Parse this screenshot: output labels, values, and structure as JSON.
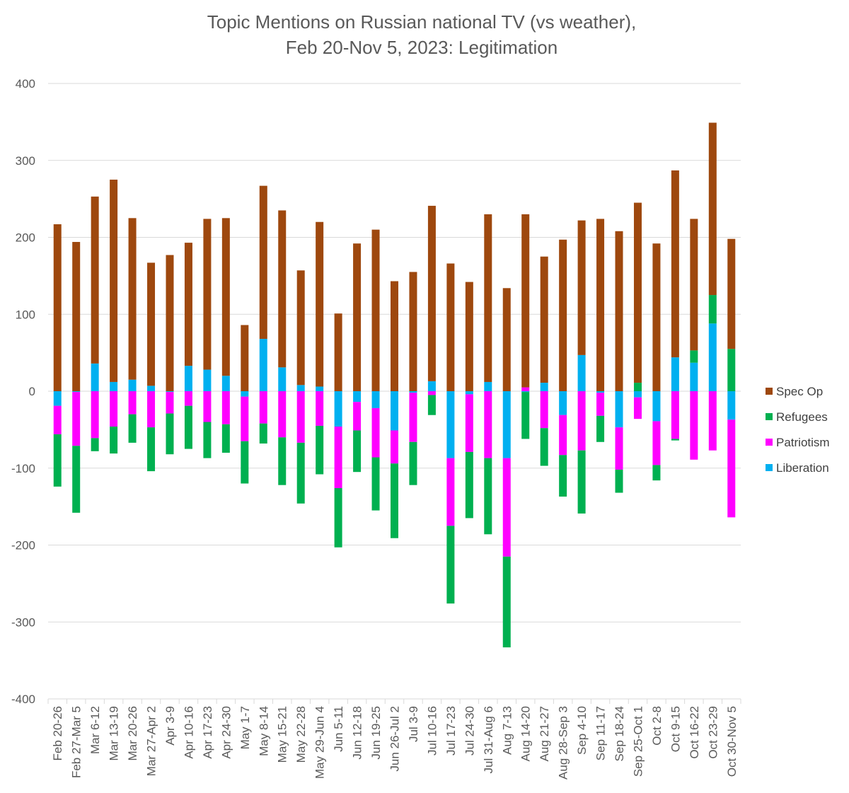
{
  "chart_data": {
    "type": "bar",
    "stacked": true,
    "title": "Topic Mentions on Russian national TV (vs weather),",
    "subtitle": "Feb 20-Nov 5, 2023: Legitimation",
    "ylim": [
      -400,
      400
    ],
    "yticks": [
      400,
      300,
      200,
      100,
      0,
      -100,
      -200,
      -300,
      -400
    ],
    "grid": true,
    "legend_position": "right",
    "categories": [
      "Feb 20-26",
      "Feb 27-Mar 5",
      "Mar 6-12",
      "Mar 13-19",
      "Mar 20-26",
      "Mar 27-Apr 2",
      "Apr 3-9",
      "Apr 10-16",
      "Apr 17-23",
      "Apr 24-30",
      "May 1-7",
      "May 8-14",
      "May 15-21",
      "May 22-28",
      "May 29-Jun 4",
      "Jun 5-11",
      "Jun 12-18",
      "Jun 19-25",
      "Jun 26-Jul 2",
      "Jul 3-9",
      "Jul 10-16",
      "Jul 17-23",
      "Jul 24-30",
      "Jul 31-Aug 6",
      "Aug 7-13",
      "Aug 14-20",
      "Aug 21-27",
      "Aug 28-Sep 3",
      "Sep 4-10",
      "Sep 11-17",
      "Sep 18-24",
      "Sep 25-Oct 1",
      "Oct 2-8",
      "Oct 9-15",
      "Oct 16-22",
      "Oct 23-29",
      "Oct 30-Nov 5"
    ],
    "series": [
      {
        "name": "Liberation",
        "color": "#00b0f0",
        "values": [
          -19,
          -1,
          36,
          12,
          15,
          7,
          -1,
          33,
          28,
          20,
          -7,
          68,
          31,
          8,
          6,
          -46,
          -14,
          -22,
          -51,
          -2,
          13,
          -87,
          -4,
          12,
          -87,
          -1,
          11,
          -31,
          47,
          -2,
          -47,
          -8,
          -39,
          44,
          37,
          88,
          -37
        ]
      },
      {
        "name": "Patriotism",
        "color": "#ff00ff",
        "values": [
          -37,
          -70,
          -61,
          -46,
          -30,
          -47,
          -28,
          -19,
          -40,
          -43,
          -58,
          -42,
          -60,
          -67,
          -45,
          -80,
          -37,
          -64,
          -43,
          -64,
          -5,
          -88,
          -75,
          -87,
          -128,
          5,
          -48,
          -52,
          -77,
          -30,
          -55,
          -28,
          -57,
          -62,
          -89,
          -77,
          -127
        ]
      },
      {
        "name": "Refugees",
        "color": "#00b050",
        "values": [
          -68,
          -87,
          -17,
          -35,
          -37,
          -57,
          -53,
          -56,
          -47,
          -37,
          -55,
          -26,
          -62,
          -79,
          -63,
          -77,
          -54,
          -69,
          -97,
          -56,
          -26,
          -101,
          -86,
          -99,
          -118,
          -61,
          -49,
          -54,
          -82,
          -34,
          -30,
          11,
          -20,
          -2,
          16,
          37,
          55
        ]
      },
      {
        "name": "Spec Op",
        "color": "#9e480e",
        "values": [
          217,
          194,
          217,
          263,
          210,
          160,
          177,
          160,
          196,
          205,
          86,
          199,
          204,
          149,
          214,
          101,
          192,
          210,
          143,
          155,
          228,
          166,
          142,
          218,
          134,
          225,
          164,
          197,
          175,
          224,
          208,
          234,
          192,
          243,
          171,
          224,
          143
        ]
      }
    ]
  }
}
